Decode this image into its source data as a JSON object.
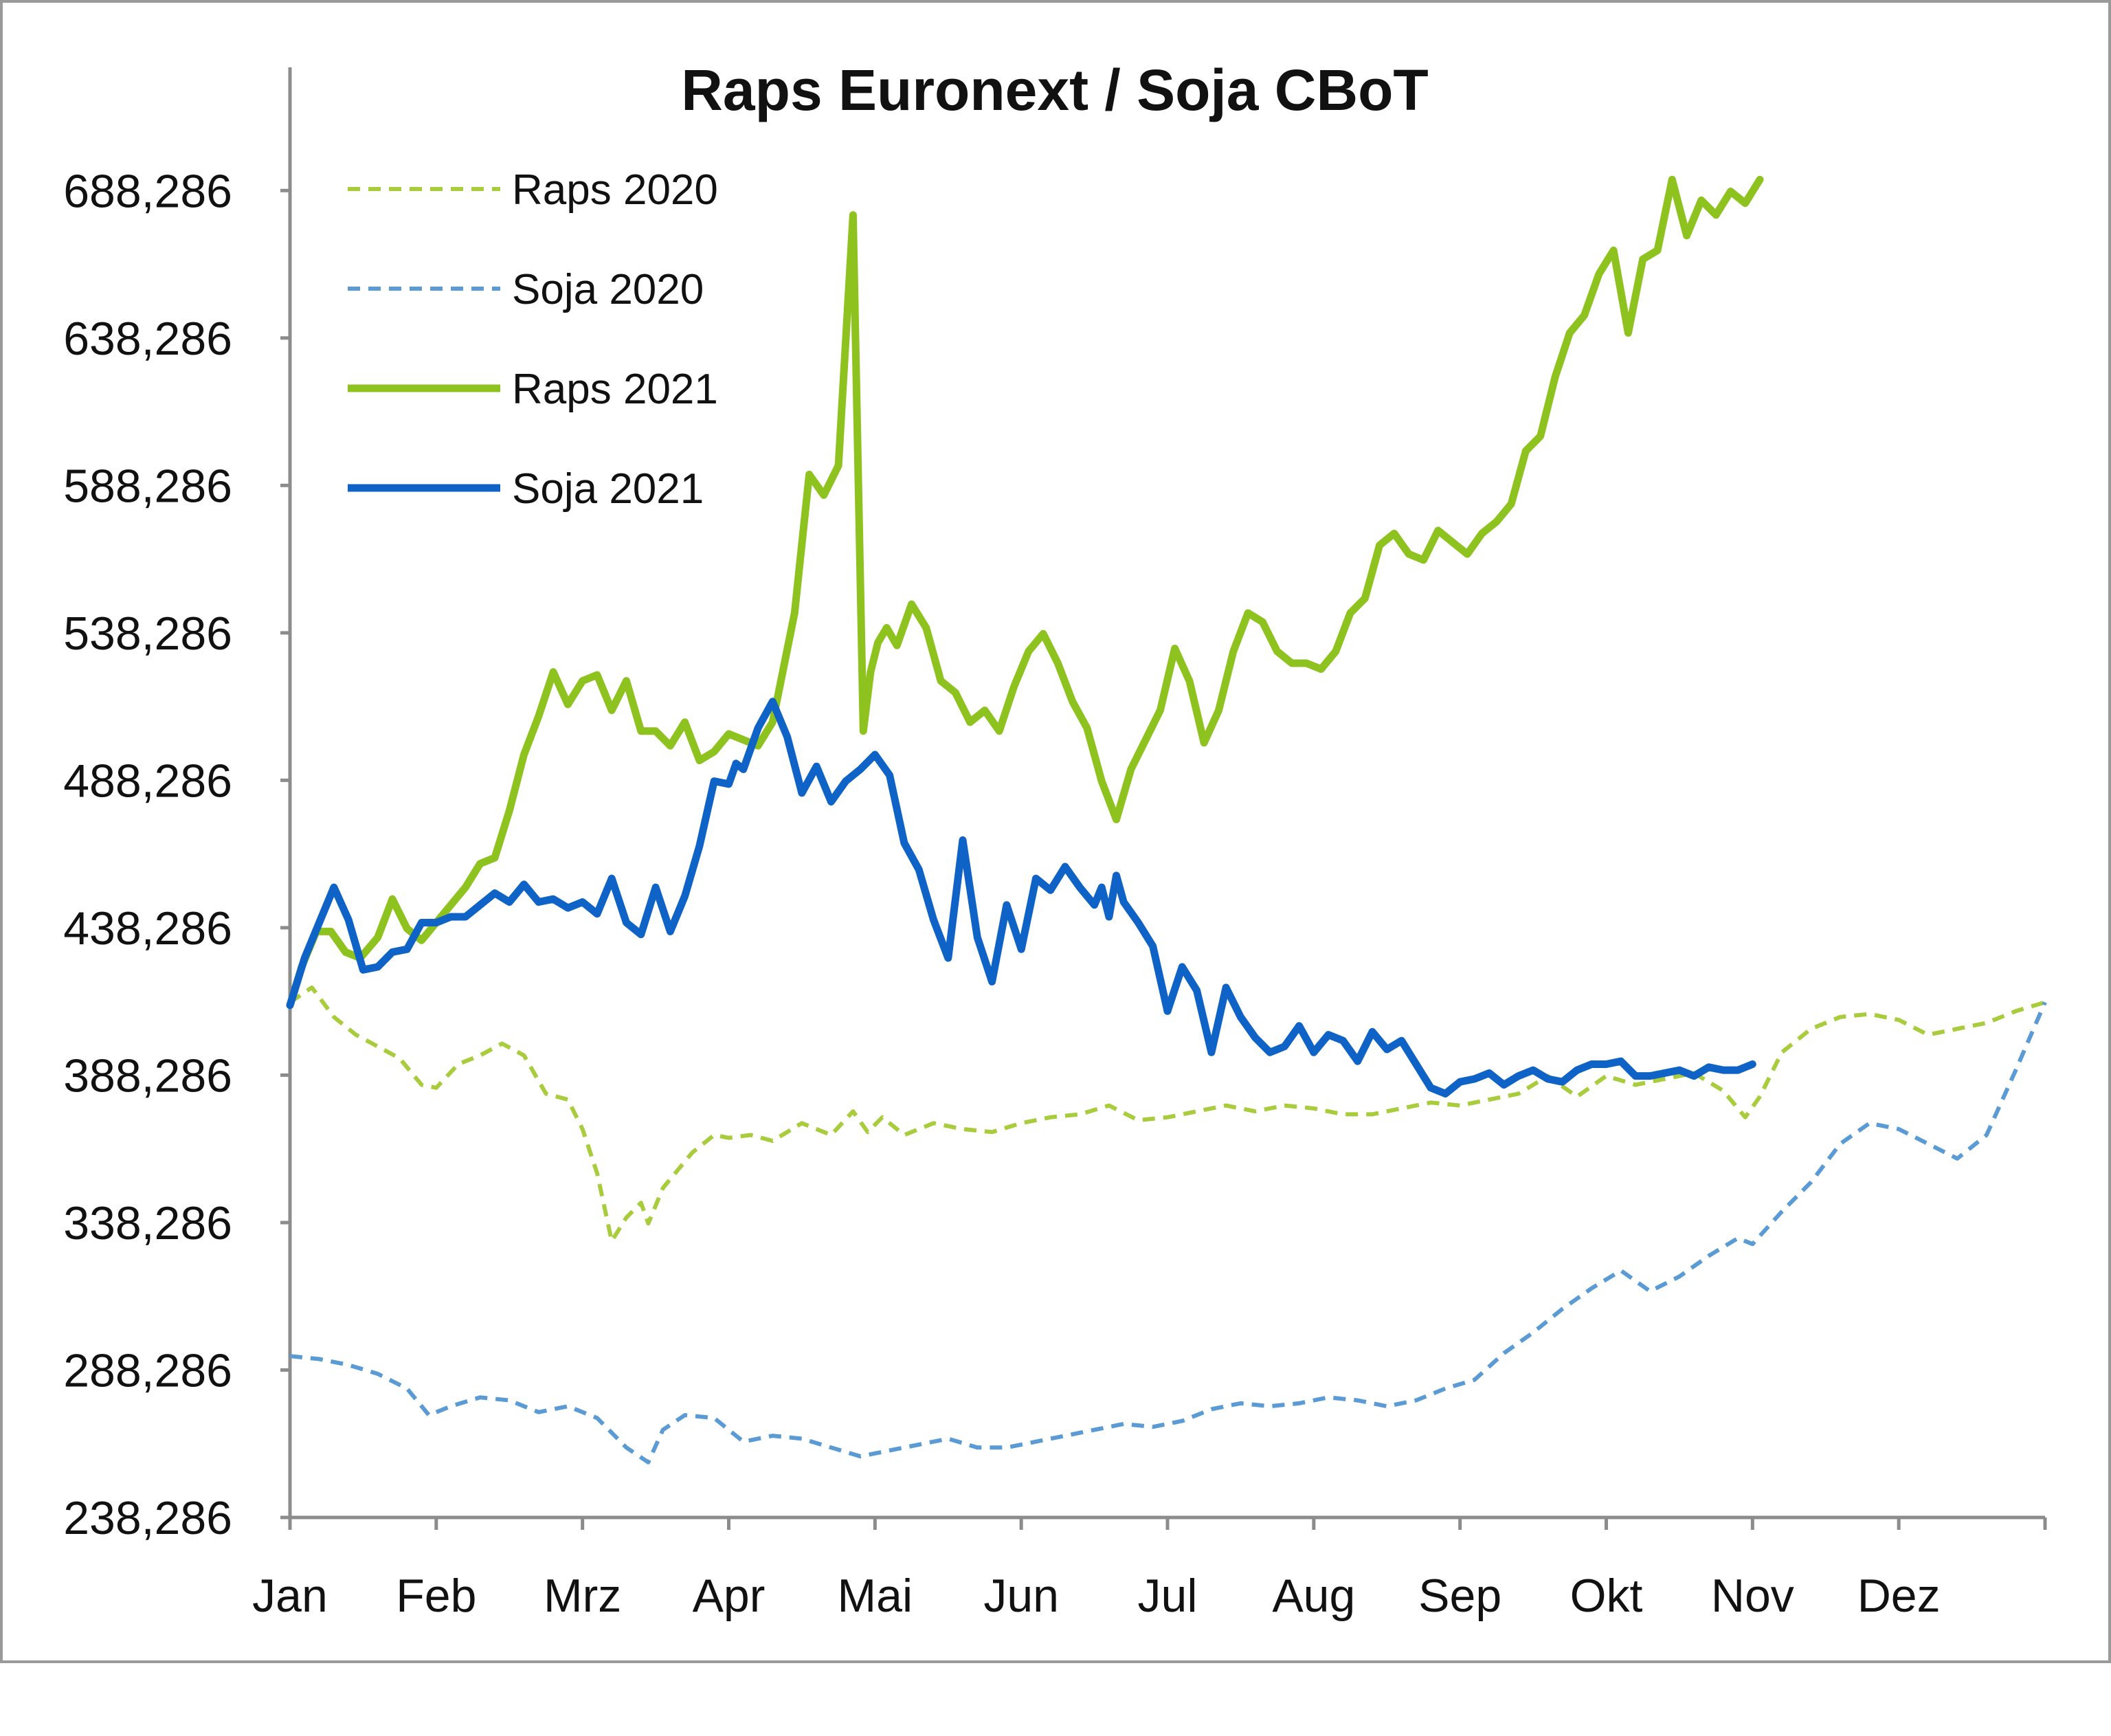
{
  "chart_data": {
    "type": "line",
    "title": "Raps Euronext / Soja CBoT",
    "xlabel": "",
    "ylabel": "",
    "ylim": [
      238.286,
      713.286
    ],
    "y_ticks": [
      238.286,
      288.286,
      338.286,
      388.286,
      438.286,
      488.286,
      538.286,
      588.286,
      638.286,
      688.286
    ],
    "y_tick_labels": [
      "238,286",
      "288,286",
      "338,286",
      "388,286",
      "438,286",
      "488,286",
      "538,286",
      "588,286",
      "638,286",
      "688,286"
    ],
    "x_unit": "month index (0 = Jan start, 12 = year end)",
    "xlim": [
      0,
      12
    ],
    "categories": [
      "Jan",
      "Feb",
      "Mrz",
      "Apr",
      "Mai",
      "Jun",
      "Jul",
      "Aug",
      "Sep",
      "Okt",
      "Nov",
      "Dez"
    ],
    "legend_position": "top-left",
    "grid": false,
    "series": [
      {
        "name": "Raps 2020",
        "color": "#a8cc3c",
        "style": "dashed",
        "x": [
          0,
          0.15,
          0.3,
          0.45,
          0.6,
          0.75,
          0.9,
          1.0,
          1.15,
          1.3,
          1.45,
          1.6,
          1.75,
          1.9,
          2.0,
          2.1,
          2.2,
          2.3,
          2.4,
          2.45,
          2.55,
          2.65,
          2.75,
          2.9,
          3.0,
          3.15,
          3.3,
          3.5,
          3.7,
          3.85,
          3.95,
          4.05,
          4.2,
          4.4,
          4.6,
          4.8,
          5.0,
          5.2,
          5.4,
          5.6,
          5.8,
          6.0,
          6.2,
          6.4,
          6.6,
          6.8,
          7.0,
          7.2,
          7.4,
          7.6,
          7.8,
          8.0,
          8.2,
          8.4,
          8.6,
          8.8,
          9.0,
          9.2,
          9.4,
          9.6,
          9.8,
          9.95,
          10.05,
          10.2,
          10.4,
          10.6,
          10.8,
          11.0,
          11.2,
          11.4,
          11.6,
          11.8,
          12.0
        ],
        "values": [
          413,
          418,
          408,
          402,
          398,
          394,
          385,
          384,
          392,
          395,
          399,
          395,
          382,
          380,
          370,
          355,
          332,
          340,
          345,
          338,
          350,
          356,
          362,
          368,
          367,
          368,
          366,
          372,
          368,
          376,
          369,
          374,
          368,
          372,
          370,
          369,
          372,
          374,
          375,
          378,
          373,
          374,
          376,
          378,
          376,
          378,
          377,
          375,
          375,
          377,
          379,
          378,
          380,
          382,
          388,
          381,
          388,
          385,
          387,
          389,
          383,
          374,
          381,
          396,
          404,
          408,
          409,
          407,
          402,
          404,
          406,
          410,
          413
        ]
      },
      {
        "name": "Soja 2020",
        "color": "#5b9bd5",
        "style": "dashed",
        "x": [
          0,
          0.2,
          0.4,
          0.6,
          0.8,
          0.95,
          1.1,
          1.3,
          1.5,
          1.7,
          1.9,
          2.1,
          2.3,
          2.45,
          2.55,
          2.7,
          2.9,
          3.1,
          3.3,
          3.5,
          3.7,
          3.9,
          4.1,
          4.3,
          4.5,
          4.7,
          4.9,
          5.1,
          5.3,
          5.5,
          5.7,
          5.9,
          6.1,
          6.3,
          6.5,
          6.7,
          6.9,
          7.1,
          7.3,
          7.5,
          7.7,
          7.9,
          8.1,
          8.3,
          8.5,
          8.7,
          8.9,
          9.1,
          9.3,
          9.5,
          9.7,
          9.9,
          10.0,
          10.2,
          10.4,
          10.6,
          10.8,
          11.0,
          11.2,
          11.4,
          11.6,
          11.8,
          12.0
        ],
        "values": [
          293,
          292,
          290,
          287,
          282,
          273,
          276,
          279,
          278,
          274,
          276,
          272,
          262,
          257,
          268,
          273,
          272,
          264,
          266,
          265,
          262,
          259,
          261,
          263,
          265,
          262,
          262,
          264,
          266,
          268,
          270,
          269,
          271,
          275,
          277,
          276,
          277,
          279,
          278,
          276,
          278,
          282,
          285,
          294,
          301,
          309,
          316,
          322,
          315,
          320,
          327,
          333,
          331,
          342,
          352,
          365,
          372,
          370,
          365,
          360,
          368,
          390,
          413
        ]
      },
      {
        "name": "Raps 2021",
        "color": "#8ec31f",
        "style": "solid",
        "x": [
          0,
          0.08,
          0.18,
          0.28,
          0.38,
          0.48,
          0.6,
          0.7,
          0.8,
          0.9,
          1.0,
          1.1,
          1.2,
          1.3,
          1.4,
          1.5,
          1.6,
          1.7,
          1.8,
          1.9,
          2.0,
          2.1,
          2.2,
          2.3,
          2.4,
          2.5,
          2.6,
          2.7,
          2.8,
          2.9,
          3.0,
          3.1,
          3.2,
          3.3,
          3.45,
          3.55,
          3.65,
          3.75,
          3.85,
          3.92,
          3.97,
          4.02,
          4.08,
          4.15,
          4.25,
          4.35,
          4.45,
          4.55,
          4.65,
          4.75,
          4.85,
          4.95,
          5.05,
          5.15,
          5.25,
          5.35,
          5.45,
          5.55,
          5.65,
          5.75,
          5.85,
          5.95,
          6.05,
          6.15,
          6.25,
          6.35,
          6.45,
          6.55,
          6.65,
          6.75,
          6.85,
          6.95,
          7.05,
          7.15,
          7.25,
          7.35,
          7.45,
          7.55,
          7.65,
          7.75,
          7.85,
          7.95,
          8.05,
          8.15,
          8.25,
          8.35,
          8.45,
          8.55,
          8.65,
          8.75,
          8.85,
          8.95,
          9.05,
          9.15,
          9.25,
          9.35,
          9.45,
          9.55,
          9.65,
          9.75,
          9.85,
          9.95,
          10.05
        ],
        "values": [
          412,
          425,
          437,
          437,
          430,
          428,
          435,
          448,
          438,
          434,
          440,
          446,
          452,
          460,
          462,
          478,
          497,
          510,
          525,
          514,
          522,
          524,
          512,
          522,
          505,
          505,
          500,
          508,
          495,
          498,
          504,
          502,
          500,
          508,
          545,
          592,
          585,
          595,
          680,
          505,
          525,
          535,
          540,
          534,
          548,
          540,
          522,
          518,
          508,
          512,
          505,
          520,
          532,
          538,
          528,
          515,
          506,
          488,
          475,
          492,
          502,
          512,
          533,
          522,
          501,
          512,
          532,
          545,
          542,
          532,
          528,
          528,
          526,
          532,
          545,
          550,
          568,
          572,
          565,
          563,
          573,
          569,
          565,
          572,
          576,
          582,
          600,
          605,
          625,
          640,
          646,
          660,
          668,
          640,
          665,
          668,
          692,
          673,
          685,
          680,
          688,
          684,
          692
        ]
      },
      {
        "name": "Soja 2021",
        "color": "#0f62c6",
        "style": "solid",
        "x": [
          0,
          0.1,
          0.2,
          0.3,
          0.4,
          0.5,
          0.6,
          0.7,
          0.8,
          0.9,
          1.0,
          1.1,
          1.2,
          1.3,
          1.4,
          1.5,
          1.6,
          1.7,
          1.8,
          1.9,
          2.0,
          2.1,
          2.2,
          2.3,
          2.4,
          2.5,
          2.6,
          2.7,
          2.8,
          2.9,
          3.0,
          3.05,
          3.1,
          3.2,
          3.3,
          3.4,
          3.5,
          3.6,
          3.7,
          3.8,
          3.9,
          4.0,
          4.1,
          4.2,
          4.3,
          4.4,
          4.5,
          4.6,
          4.7,
          4.8,
          4.9,
          5.0,
          5.1,
          5.2,
          5.3,
          5.4,
          5.5,
          5.55,
          5.6,
          5.65,
          5.7,
          5.8,
          5.9,
          6.0,
          6.1,
          6.2,
          6.3,
          6.4,
          6.5,
          6.6,
          6.7,
          6.8,
          6.9,
          7.0,
          7.1,
          7.2,
          7.3,
          7.4,
          7.5,
          7.6,
          7.7,
          7.8,
          7.9,
          8.0,
          8.1,
          8.2,
          8.3,
          8.4,
          8.5,
          8.6,
          8.7,
          8.8,
          8.9,
          9.0,
          9.1,
          9.2,
          9.3,
          9.4,
          9.5,
          9.6,
          9.7,
          9.8,
          9.9,
          10.0
        ],
        "values": [
          412,
          428,
          440,
          452,
          441,
          424,
          425,
          430,
          431,
          440,
          440,
          442,
          442,
          446,
          450,
          447,
          453,
          447,
          448,
          445,
          447,
          443,
          455,
          440,
          436,
          452,
          437,
          449,
          466,
          488,
          487,
          494,
          492,
          506,
          515,
          503,
          484,
          493,
          481,
          488,
          492,
          497,
          490,
          467,
          458,
          441,
          428,
          468,
          435,
          420,
          446,
          431,
          455,
          451,
          459,
          452,
          446,
          452,
          442,
          456,
          447,
          440,
          432,
          410,
          425,
          417,
          396,
          418,
          408,
          401,
          396,
          398,
          405,
          396,
          402,
          400,
          393,
          403,
          397,
          400,
          392,
          384,
          382,
          386,
          387,
          389,
          385,
          388,
          390,
          387,
          386,
          390,
          392,
          392,
          393,
          388,
          388,
          389,
          390,
          388,
          391,
          390,
          390,
          392
        ]
      }
    ]
  }
}
